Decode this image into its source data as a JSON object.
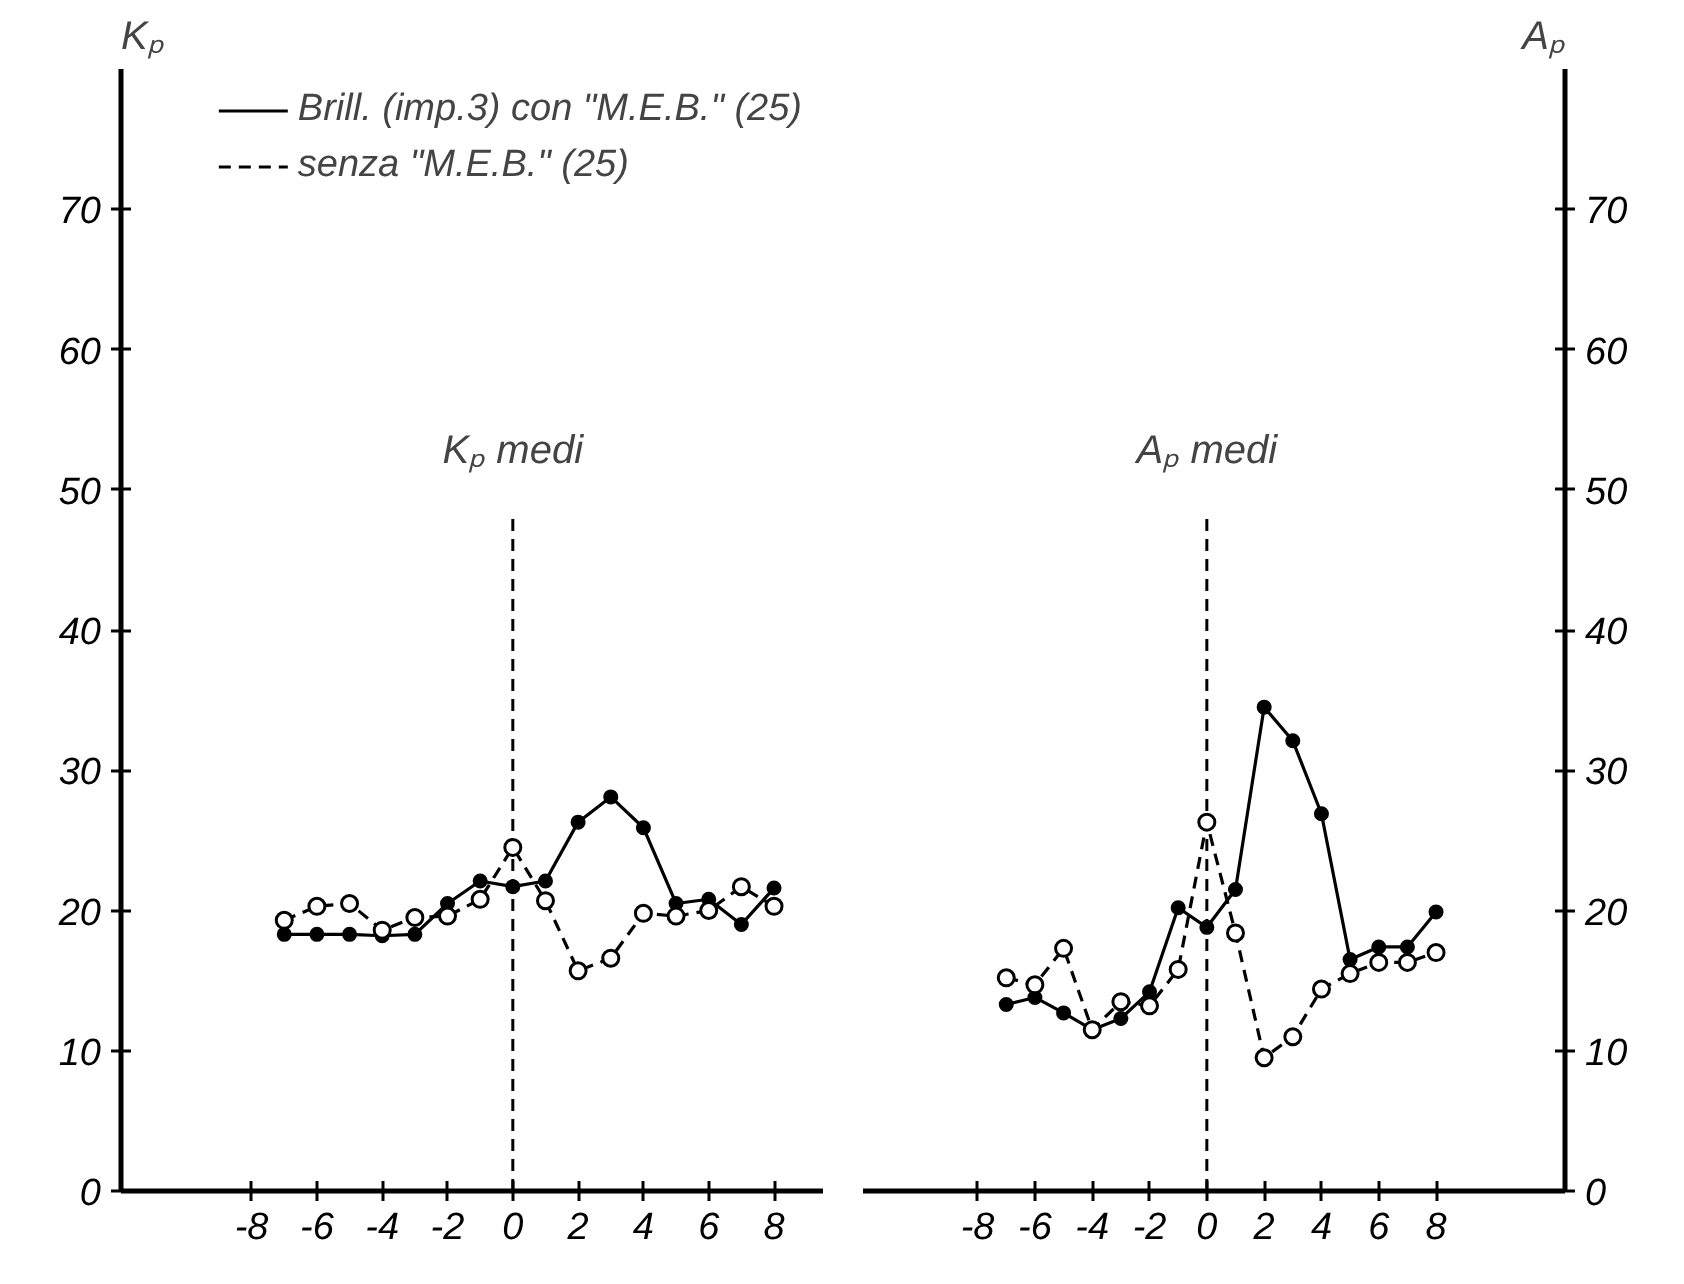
{
  "chart_data": [
    {
      "type": "line",
      "x": [
        -7,
        -6,
        -5,
        -4,
        -3,
        -2,
        -1,
        0,
        1,
        2,
        3,
        4,
        5,
        6,
        7,
        8
      ],
      "series": [
        {
          "name": "Brill. (imp.3) con \"M.E.B.\" (25)",
          "color": "#000000",
          "line_style": "solid",
          "marker": "circle",
          "values": [
            18.3,
            18.3,
            18.3,
            18.2,
            18.3,
            20.5,
            22.1,
            21.7,
            22.1,
            26.3,
            28.1,
            25.9,
            20.5,
            20.8,
            19.0,
            21.6
          ]
        },
        {
          "name": "senza \"M.E.B.\" (25)",
          "color": "#000000",
          "line_style": "dashed",
          "marker": "circle",
          "values": [
            19.3,
            20.3,
            20.5,
            18.6,
            19.5,
            19.6,
            20.8,
            24.5,
            20.7,
            15.7,
            16.6,
            19.8,
            19.6,
            20.0,
            21.7,
            20.3
          ]
        }
      ],
      "ylabel": "Kₚ",
      "xlim": [
        -12,
        9.5
      ],
      "ylim": [
        0,
        80
      ],
      "xticks": [
        -8,
        -6,
        -4,
        -2,
        0,
        2,
        4,
        6,
        8
      ],
      "yticks": [
        0,
        10,
        20,
        30,
        40,
        50,
        60,
        70
      ],
      "ref_lines": [
        {
          "axis": "x",
          "value": 0,
          "line_style": "dashed"
        }
      ],
      "annotations": [
        "Kₚ medi"
      ],
      "legend": "top",
      "grid": false
    },
    {
      "type": "line",
      "x": [
        -7,
        -6,
        -5,
        -4,
        -3,
        -2,
        -1,
        0,
        1,
        2,
        3,
        4,
        5,
        6,
        7,
        8
      ],
      "series": [
        {
          "color": "#000000",
          "line_style": "solid",
          "marker": "circle",
          "axis": "y2",
          "values": [
            13.3,
            13.8,
            12.7,
            11.5,
            12.3,
            14.2,
            20.2,
            18.8,
            21.5,
            34.5,
            32.1,
            26.9,
            16.5,
            17.4,
            17.4,
            19.9
          ]
        },
        {
          "color": "#000000",
          "line_style": "dashed",
          "marker": "circle",
          "axis": "y2",
          "values": [
            15.2,
            14.7,
            17.3,
            11.5,
            13.5,
            13.2,
            15.8,
            26.3,
            18.4,
            9.5,
            11.0,
            14.4,
            15.5,
            16.3,
            16.3,
            17.0
          ]
        }
      ],
      "y2label": "Aₚ",
      "xlim": [
        -12,
        12.5
      ],
      "y2lim": [
        0,
        80
      ],
      "xticks": [
        -8,
        -6,
        -4,
        -2,
        0,
        2,
        4,
        6,
        8
      ],
      "y2ticks": [
        0,
        10,
        20,
        30,
        40,
        50,
        60,
        70
      ],
      "ref_lines": [
        {
          "axis": "x",
          "value": 0,
          "line_style": "dashed"
        }
      ],
      "annotations": [
        "Aₚ medi"
      ],
      "grid": false
    }
  ]
}
